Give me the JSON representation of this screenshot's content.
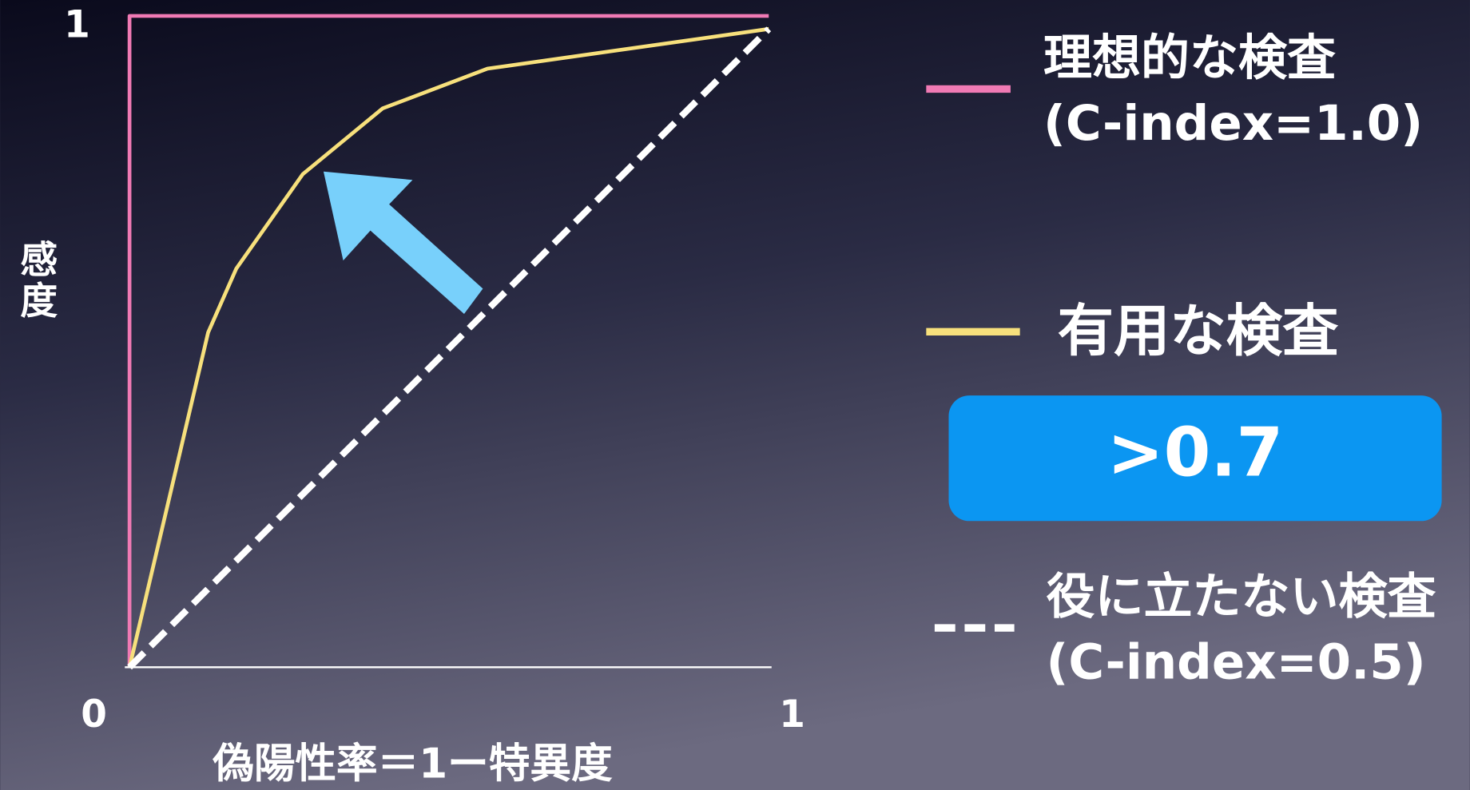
{
  "chart_data": {
    "type": "line",
    "x_label": "偽陽性率＝1ー特異度",
    "y_label": "感度",
    "xlim": [
      0,
      1
    ],
    "ylim": [
      0,
      1
    ],
    "xticks": [
      0,
      1
    ],
    "yticks": [
      1
    ],
    "series": [
      {
        "name": "理想的な検査",
        "color": "#f07ab4",
        "x": [
          0,
          0,
          1
        ],
        "values": [
          0,
          1,
          1
        ]
      },
      {
        "name": "有用な検査",
        "color": "#f7e07c",
        "x": [
          0,
          0.123,
          0.167,
          0.271,
          0.396,
          0.56,
          1
        ],
        "values": [
          0,
          0.514,
          0.612,
          0.757,
          0.858,
          0.919,
          0.98
        ]
      },
      {
        "name": "役に立たない検査",
        "color": "#ffffff",
        "dashed": true,
        "x": [
          0,
          1
        ],
        "values": [
          0,
          0.98
        ]
      }
    ],
    "annotations": [
      "(C-index=1.0)",
      ">0.7",
      "(C-index=0.5)"
    ]
  }
}
